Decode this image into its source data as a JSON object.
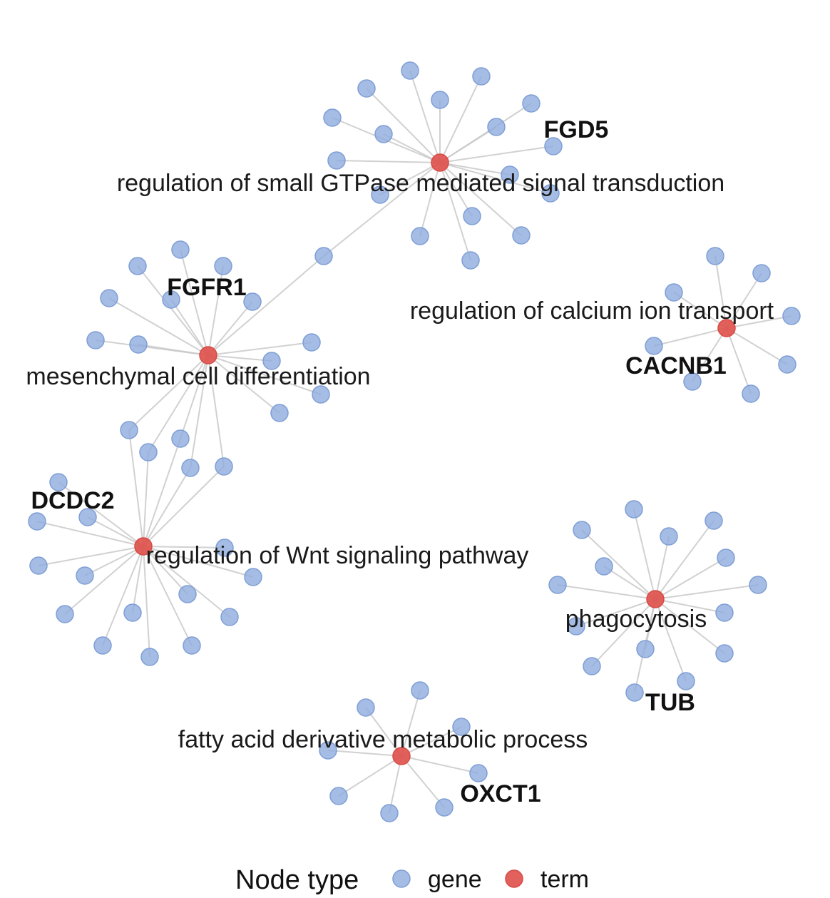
{
  "legend": {
    "title": "Node type",
    "entries": [
      {
        "label": "gene",
        "color": "#8eabdd"
      },
      {
        "label": "term",
        "color": "#e0504a"
      }
    ]
  },
  "colors": {
    "gene": "#8eabdd",
    "term": "#e0504a",
    "edge": "#c9c9c9"
  },
  "terms": [
    {
      "id": "t_gtpase",
      "label": "regulation of small GTPase mediated signal transduction"
    },
    {
      "id": "t_calcium",
      "label": "regulation of calcium ion transport"
    },
    {
      "id": "t_mesench",
      "label": "mesenchymal cell differentiation"
    },
    {
      "id": "t_wnt",
      "label": "regulation of Wnt signaling pathway"
    },
    {
      "id": "t_phago",
      "label": "phagocytosis"
    },
    {
      "id": "t_fatty",
      "label": "fatty acid derivative metabolic process"
    }
  ],
  "labeled_genes": [
    {
      "id": "g_fgd5",
      "label": "FGD5"
    },
    {
      "id": "g_fgfr1",
      "label": "FGFR1"
    },
    {
      "id": "g_cacnb1",
      "label": "CACNB1"
    },
    {
      "id": "g_dcdc2",
      "label": "DCDC2"
    },
    {
      "id": "g_tub",
      "label": "TUB"
    },
    {
      "id": "g_oxct1",
      "label": "OXCT1"
    }
  ]
}
